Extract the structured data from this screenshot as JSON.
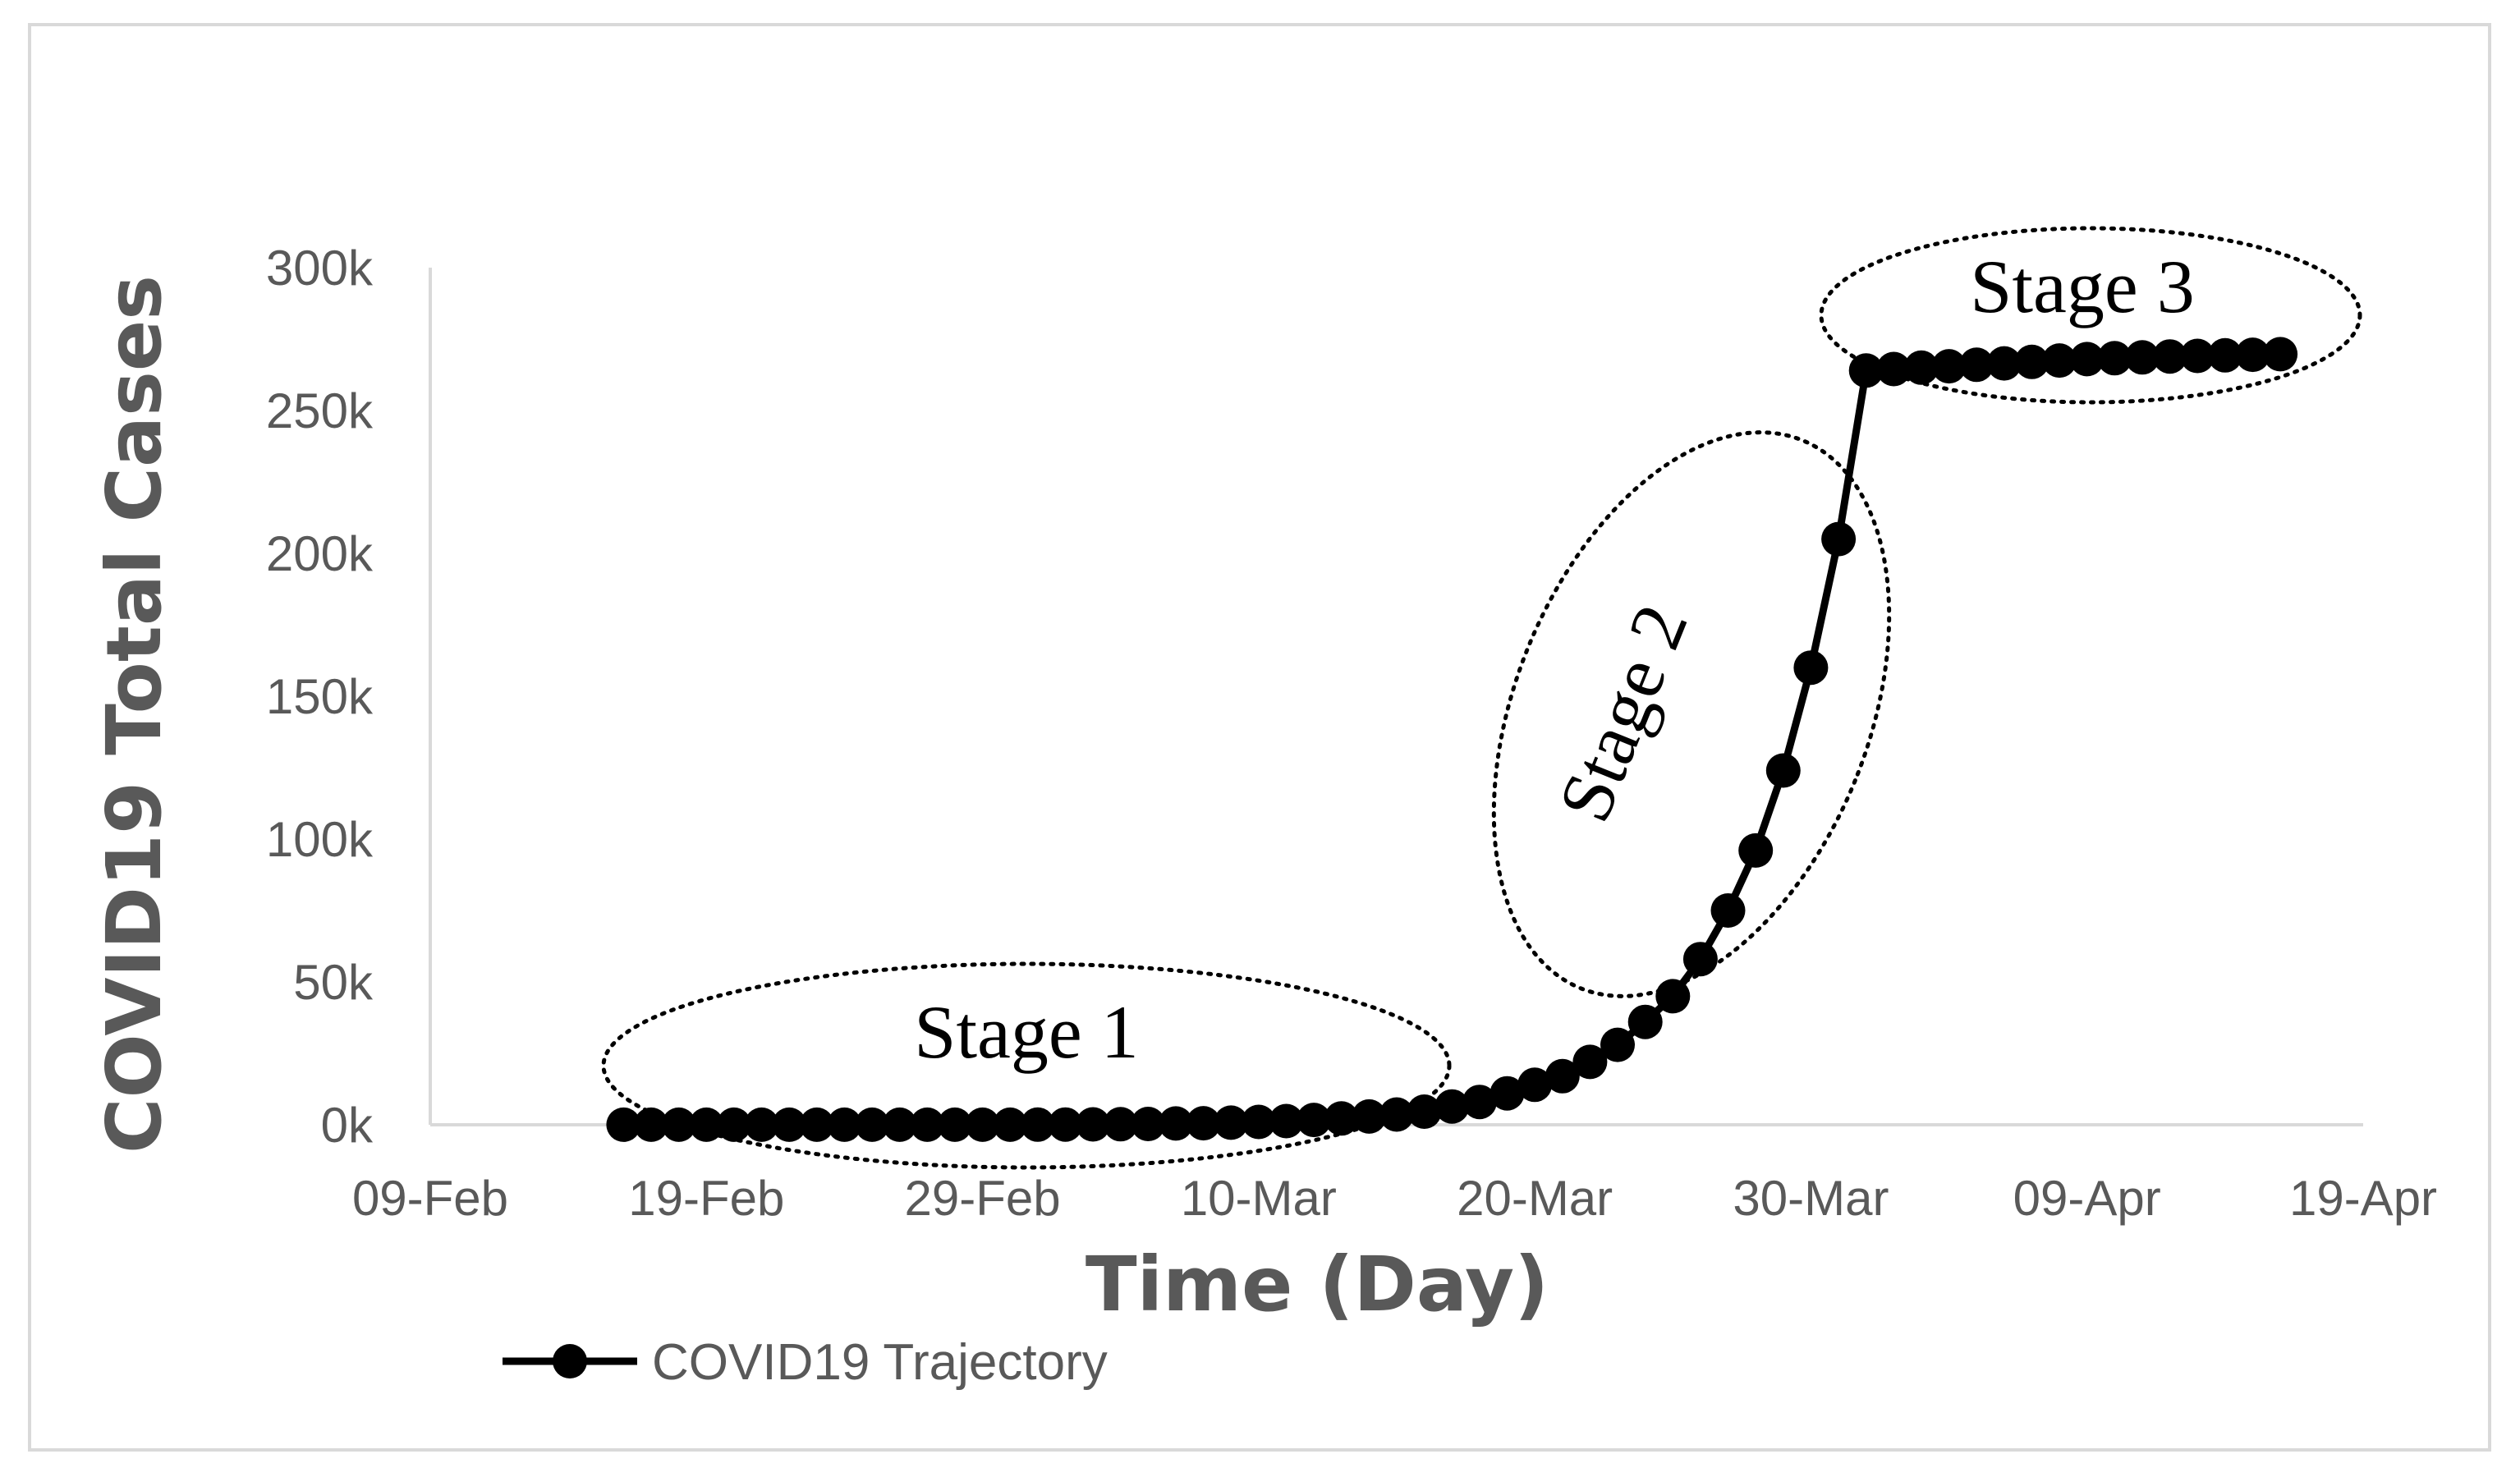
{
  "chart_data": {
    "type": "line",
    "xlabel": "Time (Day)",
    "ylabel": "COVID19 Total Cases",
    "x_ticks": [
      "09-Feb",
      "19-Feb",
      "29-Feb",
      "10-Mar",
      "20-Mar",
      "30-Mar",
      "09-Apr",
      "19-Apr"
    ],
    "y_ticks": [
      "0k",
      "50k",
      "100k",
      "150k",
      "200k",
      "250k",
      "300k"
    ],
    "xlim": [
      "2020-02-09",
      "2020-04-19"
    ],
    "ylim": [
      0,
      300000
    ],
    "legend_position": "bottom-left",
    "grid": false,
    "series": [
      {
        "name": "COVID19 Trajectory",
        "color": "#000000",
        "marker": "circle",
        "x": [
          "2020-02-16",
          "2020-02-17",
          "2020-02-18",
          "2020-02-19",
          "2020-02-20",
          "2020-02-21",
          "2020-02-22",
          "2020-02-23",
          "2020-02-24",
          "2020-02-25",
          "2020-02-26",
          "2020-02-27",
          "2020-02-28",
          "2020-02-29",
          "2020-03-01",
          "2020-03-02",
          "2020-03-03",
          "2020-03-04",
          "2020-03-05",
          "2020-03-06",
          "2020-03-07",
          "2020-03-08",
          "2020-03-09",
          "2020-03-10",
          "2020-03-11",
          "2020-03-12",
          "2020-03-13",
          "2020-03-14",
          "2020-03-15",
          "2020-03-16",
          "2020-03-17",
          "2020-03-18",
          "2020-03-19",
          "2020-03-20",
          "2020-03-21",
          "2020-03-22",
          "2020-03-23",
          "2020-03-24",
          "2020-03-25",
          "2020-03-26",
          "2020-03-27",
          "2020-03-28",
          "2020-03-29",
          "2020-03-30",
          "2020-03-31",
          "2020-04-01",
          "2020-04-02",
          "2020-04-03",
          "2020-04-04",
          "2020-04-05",
          "2020-04-06",
          "2020-04-07",
          "2020-04-08",
          "2020-04-09",
          "2020-04-10",
          "2020-04-11",
          "2020-04-12",
          "2020-04-13",
          "2020-04-14",
          "2020-04-15",
          "2020-04-16"
        ],
        "y": [
          15,
          15,
          15,
          15,
          15,
          15,
          15,
          15,
          15,
          15,
          15,
          15,
          15,
          25,
          35,
          60,
          100,
          130,
          200,
          280,
          450,
          550,
          750,
          1000,
          1300,
          1700,
          2200,
          2900,
          3600,
          4600,
          6400,
          8000,
          11000,
          14000,
          17000,
          22000,
          28000,
          36000,
          45000,
          58000,
          75000,
          96000,
          124000,
          160000,
          205000,
          264000,
          264500,
          265000,
          265500,
          266000,
          266500,
          267000,
          267500,
          268000,
          268300,
          268600,
          268900,
          269100,
          269300,
          269500,
          269700
        ]
      }
    ],
    "annotations": [
      "Stage 1",
      "Stage 2",
      "Stage 3"
    ]
  }
}
